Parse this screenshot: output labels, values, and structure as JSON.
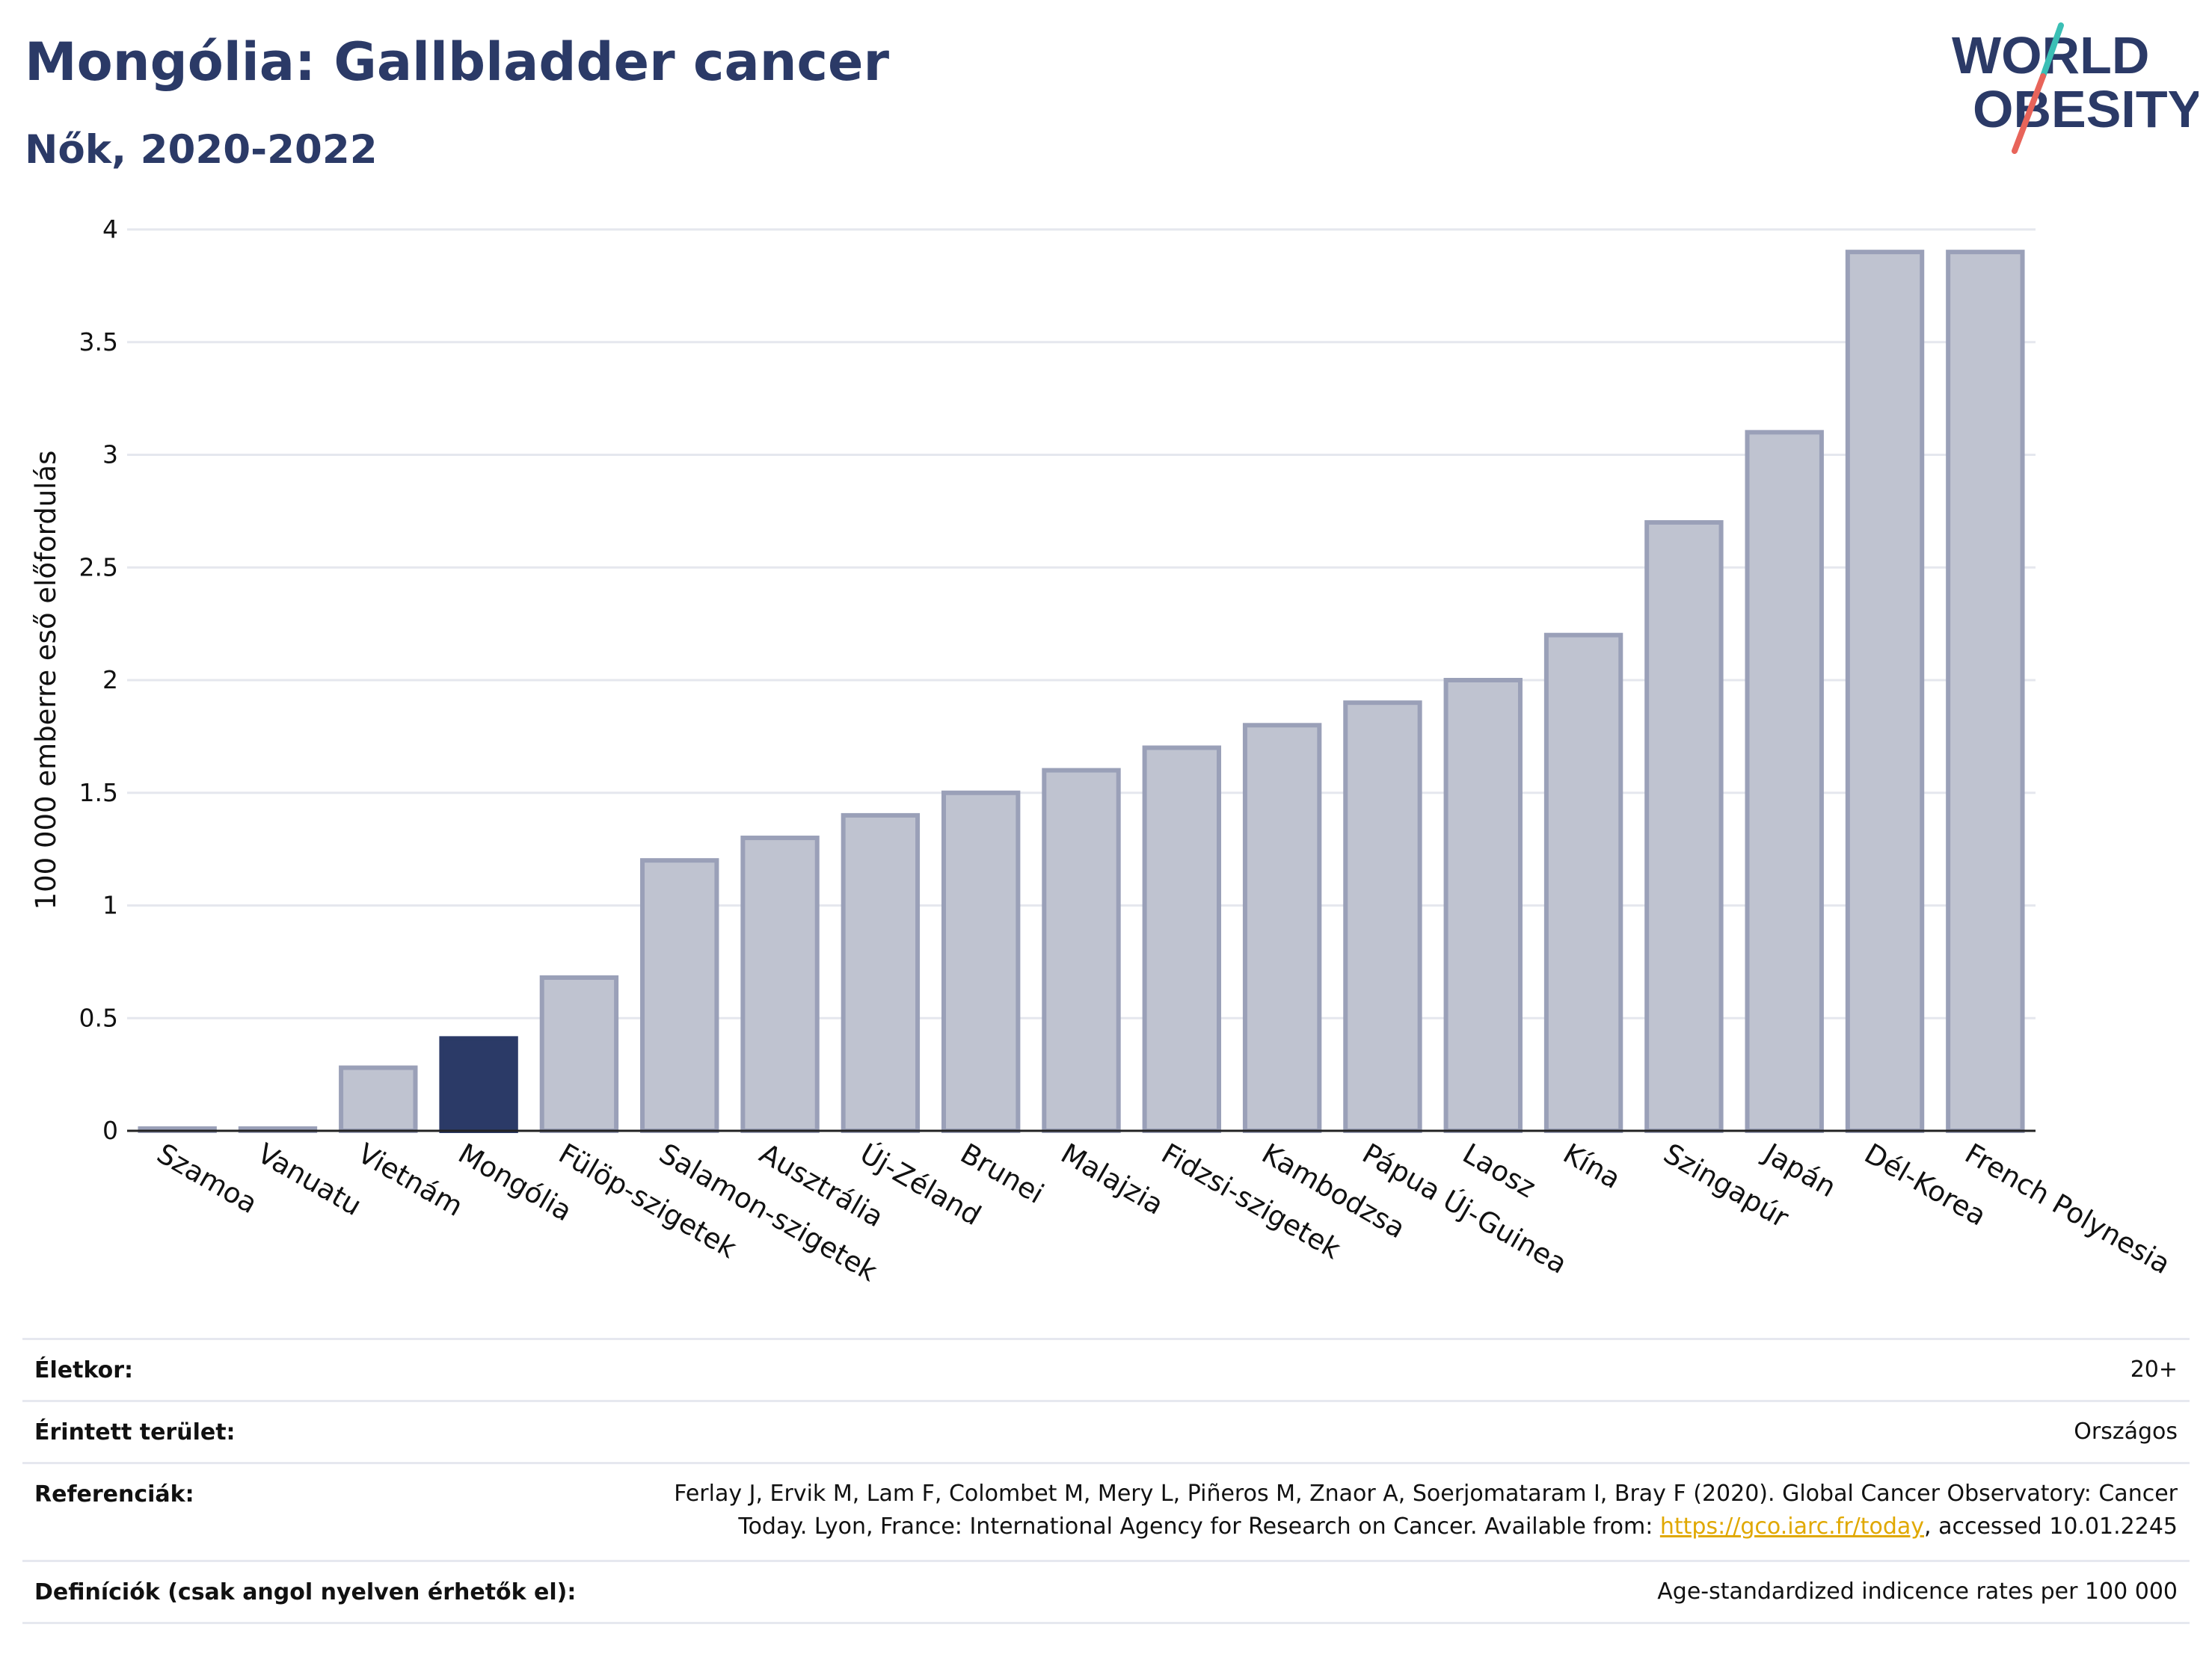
{
  "header": {
    "title": "Mongólia: Gallbladder cancer",
    "subtitle": "Nők, 2020-2022"
  },
  "logo": {
    "line1": "WORLD",
    "line2": "OBESITY",
    "brand_color": "#2b3a67",
    "slash_colors": [
      "#3bbfb5",
      "#e8645a"
    ]
  },
  "chart_data": {
    "type": "bar",
    "ylabel": "100 000 emberre eső előfordulás",
    "ylim": [
      0,
      4
    ],
    "yticks": [
      "0",
      "0.5",
      "1",
      "1.5",
      "2",
      "2.5",
      "3",
      "3.5",
      "4"
    ],
    "grid": true,
    "highlight": "Mongólia",
    "colors": {
      "default": "#bfc3d0",
      "default_border": "#9aa0b8",
      "highlight": "#2b3a67"
    },
    "categories": [
      "Szamoa",
      "Vanuatu",
      "Vietnám",
      "Mongólia",
      "Fülöp-szigetek",
      "Salamon-szigetek",
      "Ausztrália",
      "Új-Zéland",
      "Brunei",
      "Malajzia",
      "Fidzsi-szigetek",
      "Kambodzsa",
      "Pápua Új-Guinea",
      "Laosz",
      "Kína",
      "Szingapúr",
      "Japán",
      "Dél-Korea",
      "French Polynesia"
    ],
    "values": [
      0.01,
      0.01,
      0.28,
      0.41,
      0.68,
      1.2,
      1.3,
      1.4,
      1.5,
      1.6,
      1.7,
      1.8,
      1.9,
      2.0,
      2.2,
      2.7,
      3.1,
      3.9,
      3.9
    ]
  },
  "meta": {
    "age_label": "Életkor:",
    "age_value": "20+",
    "area_label": "Érintett terület:",
    "area_value": "Országos",
    "ref_label": "Referenciák:",
    "ref_line1": "Ferlay J, Ervik M, Lam F, Colombet M, Mery L, Piñeros M, Znaor A, Soerjomataram I, Bray F (2020). Global Cancer Observatory: Cancer",
    "ref_line2_pre": "Today. Lyon, France: International Agency for Research on Cancer. Available from: ",
    "ref_link": "https://gco.iarc.fr/today",
    "ref_line2_post": ", accessed 10.01.2245",
    "def_label": "Definíciók (csak angol nyelven érhetők el):",
    "def_value": "Age-standardized indicence rates per 100 000"
  }
}
